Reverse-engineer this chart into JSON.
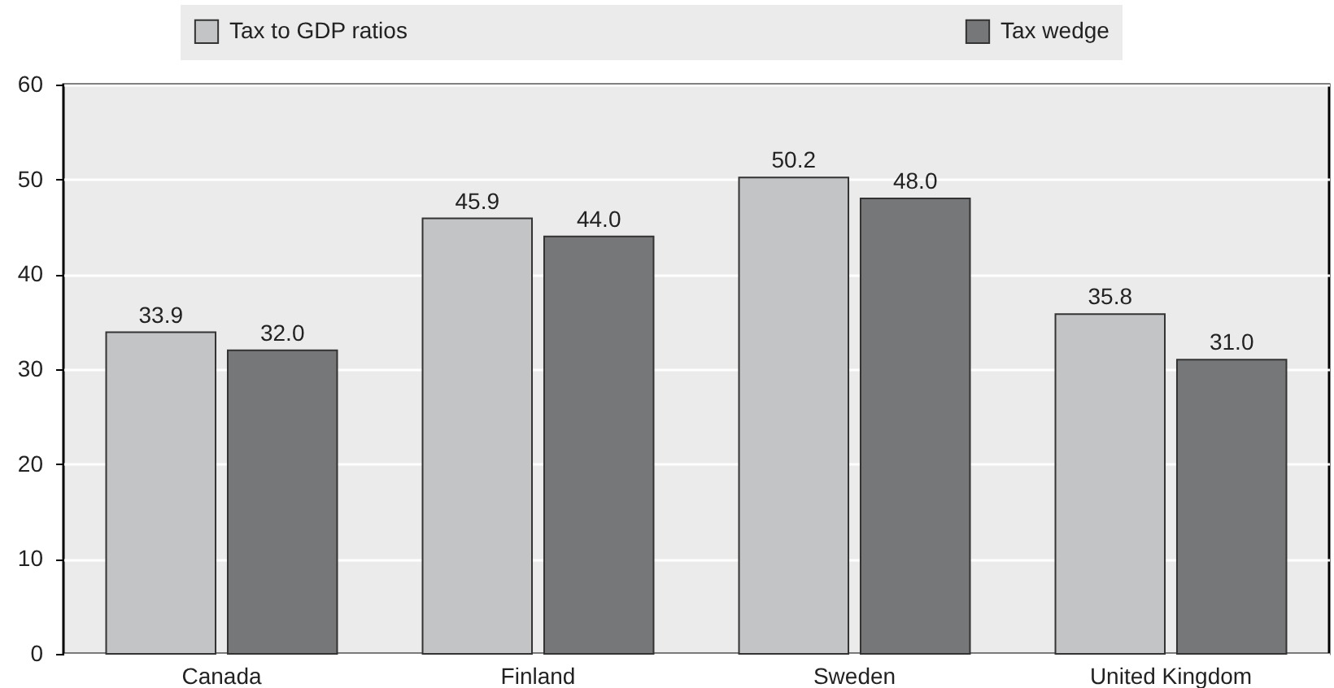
{
  "chart_data": {
    "type": "bar",
    "categories": [
      "Canada",
      "Finland",
      "Sweden",
      "United Kingdom"
    ],
    "series": [
      {
        "name": "Tax to GDP ratios",
        "color": "#c3c4c6",
        "values": [
          33.9,
          45.9,
          50.2,
          35.8
        ],
        "value_labels": [
          "33.9",
          "45.9",
          "50.2",
          "35.8"
        ]
      },
      {
        "name": "Tax wedge",
        "color": "#767779",
        "values": [
          32.0,
          44.0,
          48.0,
          31.0
        ],
        "value_labels": [
          "32.0",
          "44.0",
          "48.0",
          "31.0"
        ]
      }
    ],
    "ylim": [
      0,
      60
    ],
    "yticks": [
      0,
      10,
      20,
      30,
      40,
      50,
      60
    ],
    "grid": "y",
    "legend": "top"
  }
}
